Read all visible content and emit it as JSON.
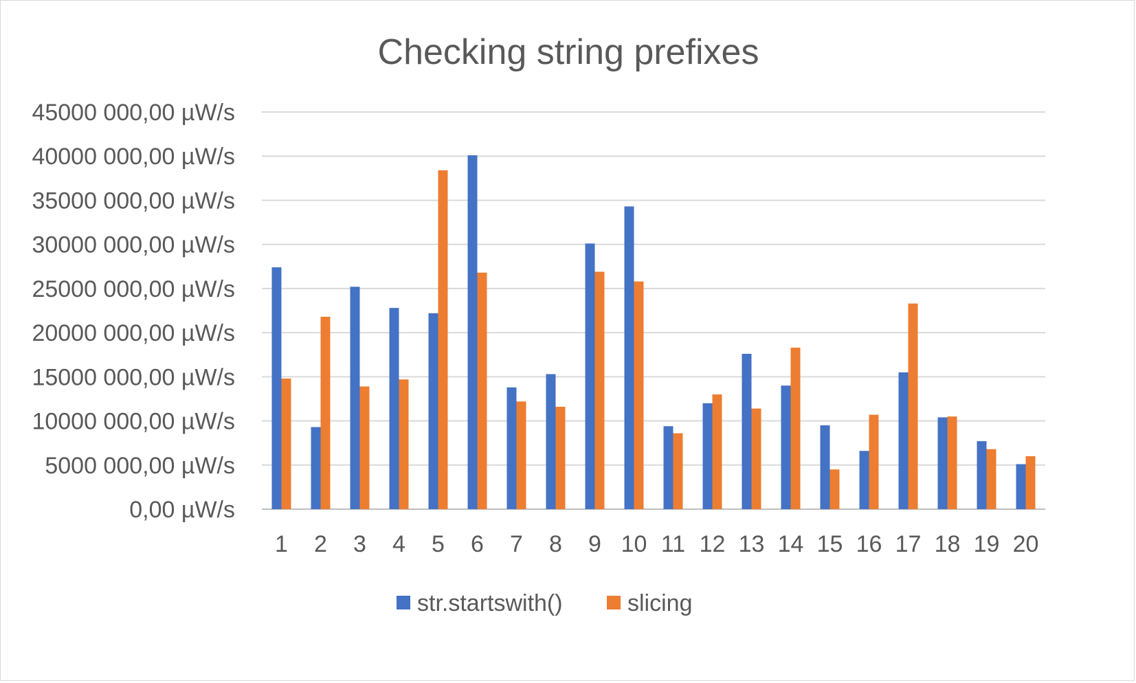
{
  "chart_data": {
    "type": "bar",
    "title": "Checking string prefixes",
    "xlabel": "",
    "ylabel": "",
    "categories": [
      "1",
      "2",
      "3",
      "4",
      "5",
      "6",
      "7",
      "8",
      "9",
      "10",
      "11",
      "12",
      "13",
      "14",
      "15",
      "16",
      "17",
      "18",
      "19",
      "20"
    ],
    "series": [
      {
        "name": "str.startswith()",
        "color": "#4472c4",
        "values": [
          27400000,
          9300000,
          25200000,
          22800000,
          22200000,
          40100000,
          13800000,
          15300000,
          30100000,
          34300000,
          9400000,
          12000000,
          17600000,
          14000000,
          9500000,
          6600000,
          15500000,
          10400000,
          7700000,
          5100000
        ]
      },
      {
        "name": "slicing",
        "color": "#ed7d31",
        "values": [
          14800000,
          21800000,
          13900000,
          14700000,
          38400000,
          26800000,
          12200000,
          11600000,
          26900000,
          25800000,
          8600000,
          13000000,
          11400000,
          18300000,
          4500000,
          10700000,
          23300000,
          10500000,
          6800000,
          6000000
        ]
      }
    ],
    "ylim": [
      0,
      45000000
    ],
    "yticks": [
      0,
      5000000,
      10000000,
      15000000,
      20000000,
      25000000,
      30000000,
      35000000,
      40000000,
      45000000
    ],
    "ytick_labels": [
      "0,00 µW/s",
      "5000 000,00 µW/s",
      "10000 000,00 µW/s",
      "15000 000,00 µW/s",
      "20000 000,00 µW/s",
      "25000 000,00 µW/s",
      "30000 000,00 µW/s",
      "35000 000,00 µW/s",
      "40000 000,00 µW/s",
      "45000 000,00 µW/s"
    ],
    "grid": true,
    "legend_position": "bottom"
  }
}
